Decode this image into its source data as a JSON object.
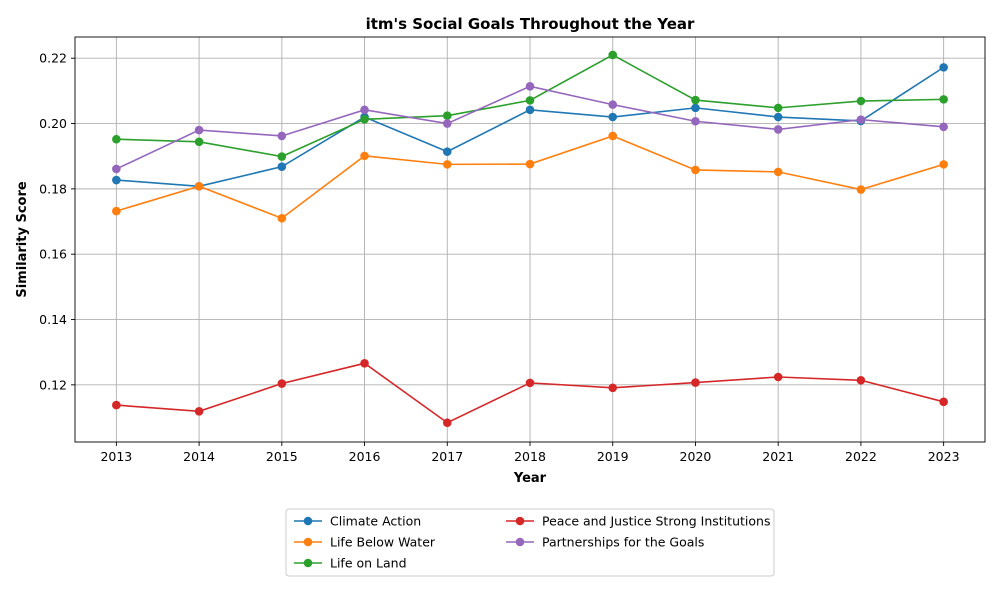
{
  "chart_data": {
    "type": "line",
    "title": "itm's Social Goals Throughout the Year",
    "xlabel": "Year",
    "ylabel": "Similarity Score",
    "x": [
      2013,
      2014,
      2015,
      2016,
      2017,
      2018,
      2019,
      2020,
      2021,
      2022,
      2023
    ],
    "y_ticks": [
      "0.12",
      "0.14",
      "0.16",
      "0.18",
      "0.20",
      "0.22"
    ],
    "ylim": [
      0.1025,
      0.2265
    ],
    "grid": true,
    "legend_position": "below",
    "series": [
      {
        "name": "Climate Action",
        "color": "#1f77b4",
        "values": [
          0.1827,
          0.1808,
          0.1868,
          0.202,
          0.1914,
          0.2042,
          0.202,
          0.2048,
          0.202,
          0.2008,
          0.2172
        ]
      },
      {
        "name": "Life Below Water",
        "color": "#ff7f0e",
        "values": [
          0.1732,
          0.1808,
          0.171,
          0.1901,
          0.1875,
          0.1876,
          0.1962,
          0.1858,
          0.1852,
          0.1798,
          0.1875
        ]
      },
      {
        "name": "Life on Land",
        "color": "#2ca02c",
        "values": [
          0.1952,
          0.1944,
          0.1899,
          0.2013,
          0.2024,
          0.2071,
          0.221,
          0.2072,
          0.2048,
          0.2069,
          0.2074
        ]
      },
      {
        "name": "Peace and Justice Strong Institutions",
        "color": "#d62728",
        "values": [
          0.1138,
          0.1119,
          0.1204,
          0.1266,
          0.1084,
          0.1206,
          0.1191,
          0.1207,
          0.1224,
          0.1214,
          0.1148
        ]
      },
      {
        "name": "Partnerships for the Goals",
        "color": "#9467bd",
        "values": [
          0.1861,
          0.198,
          0.1962,
          0.2042,
          0.2,
          0.2114,
          0.2058,
          0.2007,
          0.1982,
          0.2012,
          0.199
        ]
      }
    ]
  }
}
